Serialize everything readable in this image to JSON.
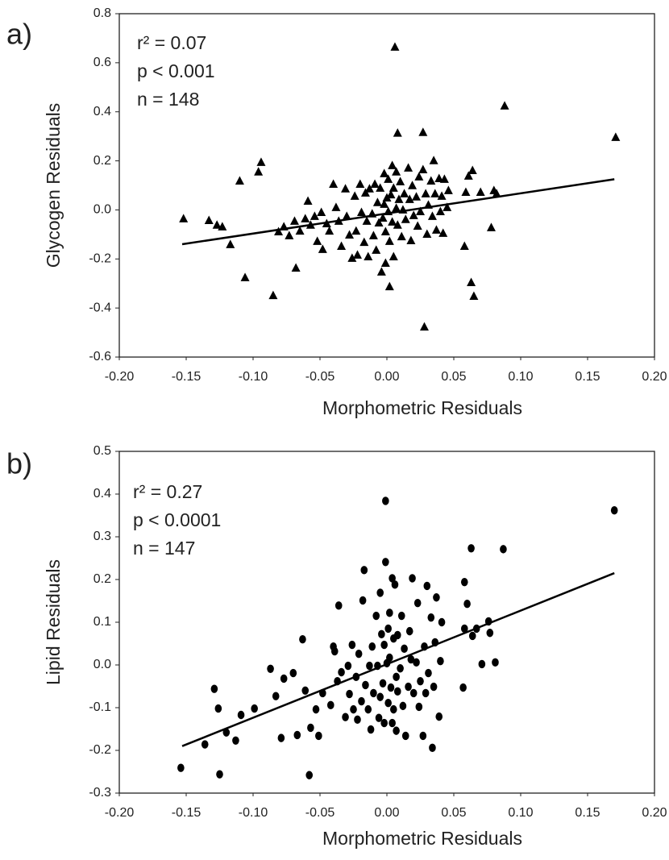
{
  "chart_data": [
    {
      "type": "scatter",
      "panel_label": "a)",
      "ylabel": "Glycogen Residuals",
      "xlabel": "Morphometric Residuals",
      "annotations": [
        "r² = 0.07",
        "p < 0.001",
        "n = 148"
      ],
      "marker": "triangle",
      "color": "#000000",
      "xlim": [
        -0.2,
        0.2
      ],
      "ylim": [
        -0.6,
        0.8
      ],
      "xticks": [
        {
          "value": -0.2,
          "label": "-0.20"
        },
        {
          "value": -0.15,
          "label": "-0.15"
        },
        {
          "value": -0.1,
          "label": "-0.10"
        },
        {
          "value": -0.05,
          "label": "-0.05"
        },
        {
          "value": 0,
          "label": "0.00"
        },
        {
          "value": 0.05,
          "label": "0.05"
        },
        {
          "value": 0.1,
          "label": "0.10"
        },
        {
          "value": 0.15,
          "label": "0.15"
        },
        {
          "value": 0.2,
          "label": "0.20"
        }
      ],
      "yticks": [
        -0.6,
        -0.4,
        -0.2,
        {
          "value": 0,
          "label": "0.0"
        },
        0.2,
        0.4,
        0.6,
        0.8
      ],
      "x": [
        -0.152,
        -0.133,
        -0.127,
        -0.123,
        -0.117,
        -0.11,
        -0.106,
        -0.096,
        -0.094,
        -0.085,
        -0.081,
        -0.077,
        -0.073,
        -0.069,
        -0.068,
        -0.065,
        -0.061,
        -0.059,
        -0.057,
        -0.054,
        -0.052,
        -0.049,
        -0.048,
        -0.045,
        -0.043,
        -0.04,
        -0.038,
        -0.036,
        -0.034,
        -0.031,
        -0.03,
        -0.028,
        -0.026,
        -0.024,
        -0.023,
        -0.022,
        -0.02,
        -0.019,
        -0.017,
        -0.016,
        -0.015,
        -0.014,
        -0.013,
        -0.011,
        -0.01,
        -0.009,
        -0.008,
        -0.007,
        -0.006,
        -0.005,
        -0.004,
        -0.003,
        -0.002,
        -0.002,
        -0.001,
        -0.001,
        0.0,
        0.001,
        0.001,
        0.002,
        0.002,
        0.003,
        0.004,
        0.004,
        0.005,
        0.005,
        0.006,
        0.007,
        0.007,
        0.008,
        0.008,
        0.009,
        0.01,
        0.011,
        0.012,
        0.013,
        0.014,
        0.016,
        0.017,
        0.018,
        0.019,
        0.02,
        0.022,
        0.023,
        0.024,
        0.025,
        0.027,
        0.027,
        0.028,
        0.029,
        0.03,
        0.031,
        0.033,
        0.034,
        0.035,
        0.036,
        0.037,
        0.039,
        0.04,
        0.041,
        0.042,
        0.043,
        0.045,
        0.046,
        0.058,
        0.059,
        0.061,
        0.063,
        0.064,
        0.065,
        0.07,
        0.08,
        0.078,
        0.082,
        0.088,
        0.171
      ],
      "values": [
        -0.036,
        -0.043,
        -0.062,
        -0.069,
        -0.141,
        0.118,
        -0.276,
        0.155,
        0.194,
        -0.349,
        -0.089,
        -0.069,
        -0.105,
        -0.046,
        -0.237,
        -0.086,
        -0.036,
        0.036,
        -0.062,
        -0.026,
        -0.128,
        -0.01,
        -0.161,
        -0.056,
        -0.086,
        0.105,
        0.01,
        -0.046,
        -0.148,
        0.086,
        -0.026,
        -0.102,
        -0.197,
        0.056,
        -0.086,
        -0.184,
        0.105,
        -0.01,
        -0.132,
        0.069,
        -0.046,
        -0.191,
        0.086,
        -0.016,
        -0.105,
        0.105,
        -0.164,
        0.03,
        -0.053,
        0.089,
        -0.253,
        -0.033,
        0.148,
        0.023,
        -0.089,
        -0.217,
        0.049,
        0.125,
        -0.007,
        -0.128,
        -0.313,
        0.062,
        0.181,
        -0.049,
        0.089,
        -0.191,
        0.664,
        0.007,
        0.155,
        0.313,
        -0.062,
        0.043,
        0.115,
        -0.109,
        0.0,
        0.066,
        -0.039,
        0.171,
        0.043,
        -0.125,
        0.099,
        -0.023,
        0.053,
        -0.066,
        0.135,
        -0.007,
        0.316,
        0.164,
        -0.477,
        0.066,
        -0.099,
        0.02,
        0.118,
        -0.026,
        0.201,
        0.066,
        -0.082,
        0.128,
        -0.007,
        0.056,
        -0.095,
        0.125,
        0.01,
        0.079,
        -0.148,
        0.072,
        0.138,
        -0.296,
        0.161,
        -0.352,
        0.072,
        0.079,
        -0.072,
        0.066,
        0.424,
        0.296
      ],
      "trendline": {
        "x": [
          -0.153,
          0.17
        ],
        "values": [
          -0.14,
          0.125
        ]
      }
    },
    {
      "type": "scatter",
      "panel_label": "b)",
      "ylabel": "Lipid Residuals",
      "xlabel": "Morphometric Residuals",
      "annotations": [
        "r² = 0.27",
        "p < 0.0001",
        "n = 147"
      ],
      "marker": "circle",
      "color": "#000000",
      "xlim": [
        -0.2,
        0.2
      ],
      "ylim": [
        -0.3,
        0.5
      ],
      "xticks": [
        {
          "value": -0.2,
          "label": "-0.20"
        },
        {
          "value": -0.15,
          "label": "-0.15"
        },
        {
          "value": -0.1,
          "label": "-0.10"
        },
        {
          "value": -0.05,
          "label": "-0.05"
        },
        {
          "value": 0,
          "label": "0.00"
        },
        {
          "value": 0.05,
          "label": "0.05"
        },
        {
          "value": 0.1,
          "label": "0.10"
        },
        {
          "value": 0.15,
          "label": "0.15"
        },
        {
          "value": 0.2,
          "label": "0.20"
        }
      ],
      "yticks": [
        -0.3,
        -0.2,
        -0.1,
        {
          "value": 0,
          "label": "0.0"
        },
        0.1,
        0.2,
        0.3,
        0.4,
        0.5
      ],
      "x": [
        -0.154,
        -0.136,
        -0.129,
        -0.126,
        -0.125,
        -0.12,
        -0.113,
        -0.109,
        -0.099,
        -0.087,
        -0.083,
        -0.079,
        -0.077,
        -0.07,
        -0.067,
        -0.063,
        -0.061,
        -0.058,
        -0.057,
        -0.053,
        -0.051,
        -0.048,
        -0.042,
        -0.04,
        -0.039,
        -0.037,
        -0.036,
        -0.034,
        -0.031,
        -0.029,
        -0.028,
        -0.026,
        -0.025,
        -0.023,
        -0.022,
        -0.021,
        -0.019,
        -0.018,
        -0.017,
        -0.016,
        -0.014,
        -0.013,
        -0.012,
        -0.011,
        -0.01,
        -0.008,
        -0.007,
        -0.006,
        -0.005,
        -0.005,
        -0.004,
        -0.003,
        -0.002,
        -0.002,
        -0.001,
        -0.001,
        0.0,
        0.001,
        0.001,
        0.002,
        0.002,
        0.003,
        0.004,
        0.004,
        0.005,
        0.005,
        0.006,
        0.007,
        0.007,
        0.008,
        0.008,
        0.01,
        0.011,
        0.012,
        0.013,
        0.014,
        0.016,
        0.017,
        0.018,
        0.019,
        0.02,
        0.022,
        0.023,
        0.024,
        0.025,
        0.027,
        0.028,
        0.029,
        0.03,
        0.031,
        0.033,
        0.034,
        0.035,
        0.036,
        0.037,
        0.039,
        0.04,
        0.041,
        0.057,
        0.058,
        0.058,
        0.06,
        0.063,
        0.064,
        0.067,
        0.071,
        0.076,
        0.077,
        0.081,
        0.087,
        0.17
      ],
      "values": [
        -0.241,
        -0.186,
        -0.056,
        -0.102,
        -0.256,
        -0.158,
        -0.177,
        -0.117,
        -0.102,
        -0.009,
        -0.073,
        -0.171,
        -0.032,
        -0.019,
        -0.164,
        0.06,
        -0.06,
        -0.258,
        -0.147,
        -0.104,
        -0.166,
        -0.066,
        -0.094,
        0.043,
        0.032,
        -0.038,
        0.139,
        -0.017,
        -0.122,
        -0.002,
        -0.068,
        0.047,
        -0.104,
        -0.028,
        -0.128,
        0.026,
        -0.085,
        0.151,
        0.222,
        -0.047,
        -0.104,
        -0.002,
        -0.151,
        0.043,
        -0.066,
        0.115,
        -0.002,
        -0.124,
        0.169,
        -0.075,
        0.072,
        -0.043,
        -0.136,
        0.047,
        0.384,
        0.241,
        0.004,
        -0.089,
        0.085,
        0.017,
        0.122,
        -0.053,
        0.203,
        -0.136,
        0.062,
        -0.104,
        0.188,
        -0.028,
        -0.154,
        0.07,
        -0.062,
        -0.008,
        0.115,
        -0.096,
        0.038,
        -0.166,
        -0.051,
        0.079,
        0.013,
        0.203,
        -0.066,
        0.006,
        0.145,
        -0.098,
        -0.038,
        -0.166,
        0.043,
        -0.066,
        0.185,
        -0.019,
        0.111,
        -0.194,
        -0.051,
        0.053,
        0.158,
        -0.121,
        0.009,
        0.1,
        -0.053,
        0.194,
        0.085,
        0.143,
        0.273,
        0.068,
        0.085,
        0.002,
        0.102,
        0.075,
        0.006,
        0.271,
        0.362
      ],
      "trendline": {
        "x": [
          -0.153,
          0.17
        ],
        "values": [
          -0.19,
          0.215
        ]
      }
    }
  ]
}
